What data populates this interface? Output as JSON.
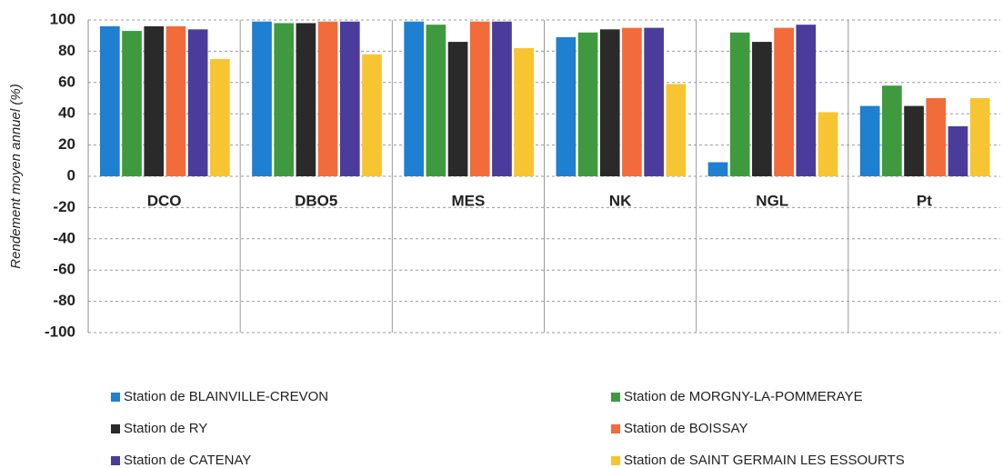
{
  "chart_data": {
    "type": "bar",
    "ylabel": "Rendement moyen annuel (%)",
    "categories": [
      "DCO",
      "DBO5",
      "MES",
      "NK",
      "NGL",
      "Pt"
    ],
    "series": [
      {
        "name": "Station de BLAINVILLE-CREVON",
        "color": "#1f7fd0",
        "values": [
          96,
          99,
          99,
          89,
          9,
          45
        ]
      },
      {
        "name": "Station de MORGNY-LA-POMMERAYE",
        "color": "#3f9a3f",
        "values": [
          93,
          98,
          97,
          92,
          92,
          58
        ]
      },
      {
        "name": "Station de RY",
        "color": "#2a2a2a",
        "values": [
          96,
          98,
          86,
          94,
          86,
          45
        ]
      },
      {
        "name": "Station de BOISSAY",
        "color": "#f26b3a",
        "values": [
          96,
          99,
          99,
          95,
          95,
          50
        ]
      },
      {
        "name": "Station de CATENAY",
        "color": "#4b3c9c",
        "values": [
          94,
          99,
          99,
          95,
          97,
          32
        ]
      },
      {
        "name": "Station de SAINT GERMAIN LES ESSOURTS",
        "color": "#f7c531",
        "values": [
          75,
          78,
          82,
          59,
          41,
          50
        ]
      }
    ],
    "ylim": [
      -100,
      100
    ],
    "yticks": [
      -100,
      -80,
      -60,
      -40,
      -20,
      0,
      20,
      40,
      60,
      80,
      100
    ],
    "grid": true
  }
}
